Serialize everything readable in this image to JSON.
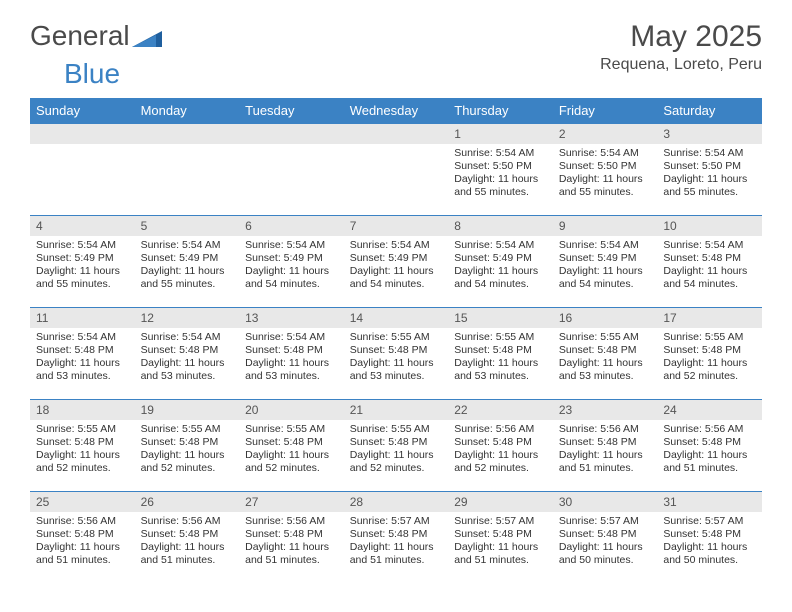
{
  "brand": {
    "part1": "General",
    "part2": "Blue"
  },
  "title": "May 2025",
  "location": "Requena, Loreto, Peru",
  "colors": {
    "header_bg": "#3b82c4",
    "header_text": "#ffffff",
    "daynum_bg": "#e8e8e8",
    "cell_border": "#3b82c4",
    "body_text": "#333333",
    "title_text": "#4a4a4a"
  },
  "weekdays": [
    "Sunday",
    "Monday",
    "Tuesday",
    "Wednesday",
    "Thursday",
    "Friday",
    "Saturday"
  ],
  "weeks": [
    [
      null,
      null,
      null,
      null,
      {
        "d": "1",
        "sr": "5:54 AM",
        "ss": "5:50 PM",
        "dl": "11 hours and 55 minutes."
      },
      {
        "d": "2",
        "sr": "5:54 AM",
        "ss": "5:50 PM",
        "dl": "11 hours and 55 minutes."
      },
      {
        "d": "3",
        "sr": "5:54 AM",
        "ss": "5:50 PM",
        "dl": "11 hours and 55 minutes."
      }
    ],
    [
      {
        "d": "4",
        "sr": "5:54 AM",
        "ss": "5:49 PM",
        "dl": "11 hours and 55 minutes."
      },
      {
        "d": "5",
        "sr": "5:54 AM",
        "ss": "5:49 PM",
        "dl": "11 hours and 55 minutes."
      },
      {
        "d": "6",
        "sr": "5:54 AM",
        "ss": "5:49 PM",
        "dl": "11 hours and 54 minutes."
      },
      {
        "d": "7",
        "sr": "5:54 AM",
        "ss": "5:49 PM",
        "dl": "11 hours and 54 minutes."
      },
      {
        "d": "8",
        "sr": "5:54 AM",
        "ss": "5:49 PM",
        "dl": "11 hours and 54 minutes."
      },
      {
        "d": "9",
        "sr": "5:54 AM",
        "ss": "5:49 PM",
        "dl": "11 hours and 54 minutes."
      },
      {
        "d": "10",
        "sr": "5:54 AM",
        "ss": "5:48 PM",
        "dl": "11 hours and 54 minutes."
      }
    ],
    [
      {
        "d": "11",
        "sr": "5:54 AM",
        "ss": "5:48 PM",
        "dl": "11 hours and 53 minutes."
      },
      {
        "d": "12",
        "sr": "5:54 AM",
        "ss": "5:48 PM",
        "dl": "11 hours and 53 minutes."
      },
      {
        "d": "13",
        "sr": "5:54 AM",
        "ss": "5:48 PM",
        "dl": "11 hours and 53 minutes."
      },
      {
        "d": "14",
        "sr": "5:55 AM",
        "ss": "5:48 PM",
        "dl": "11 hours and 53 minutes."
      },
      {
        "d": "15",
        "sr": "5:55 AM",
        "ss": "5:48 PM",
        "dl": "11 hours and 53 minutes."
      },
      {
        "d": "16",
        "sr": "5:55 AM",
        "ss": "5:48 PM",
        "dl": "11 hours and 53 minutes."
      },
      {
        "d": "17",
        "sr": "5:55 AM",
        "ss": "5:48 PM",
        "dl": "11 hours and 52 minutes."
      }
    ],
    [
      {
        "d": "18",
        "sr": "5:55 AM",
        "ss": "5:48 PM",
        "dl": "11 hours and 52 minutes."
      },
      {
        "d": "19",
        "sr": "5:55 AM",
        "ss": "5:48 PM",
        "dl": "11 hours and 52 minutes."
      },
      {
        "d": "20",
        "sr": "5:55 AM",
        "ss": "5:48 PM",
        "dl": "11 hours and 52 minutes."
      },
      {
        "d": "21",
        "sr": "5:55 AM",
        "ss": "5:48 PM",
        "dl": "11 hours and 52 minutes."
      },
      {
        "d": "22",
        "sr": "5:56 AM",
        "ss": "5:48 PM",
        "dl": "11 hours and 52 minutes."
      },
      {
        "d": "23",
        "sr": "5:56 AM",
        "ss": "5:48 PM",
        "dl": "11 hours and 51 minutes."
      },
      {
        "d": "24",
        "sr": "5:56 AM",
        "ss": "5:48 PM",
        "dl": "11 hours and 51 minutes."
      }
    ],
    [
      {
        "d": "25",
        "sr": "5:56 AM",
        "ss": "5:48 PM",
        "dl": "11 hours and 51 minutes."
      },
      {
        "d": "26",
        "sr": "5:56 AM",
        "ss": "5:48 PM",
        "dl": "11 hours and 51 minutes."
      },
      {
        "d": "27",
        "sr": "5:56 AM",
        "ss": "5:48 PM",
        "dl": "11 hours and 51 minutes."
      },
      {
        "d": "28",
        "sr": "5:57 AM",
        "ss": "5:48 PM",
        "dl": "11 hours and 51 minutes."
      },
      {
        "d": "29",
        "sr": "5:57 AM",
        "ss": "5:48 PM",
        "dl": "11 hours and 51 minutes."
      },
      {
        "d": "30",
        "sr": "5:57 AM",
        "ss": "5:48 PM",
        "dl": "11 hours and 50 minutes."
      },
      {
        "d": "31",
        "sr": "5:57 AM",
        "ss": "5:48 PM",
        "dl": "11 hours and 50 minutes."
      }
    ]
  ],
  "labels": {
    "sunrise": "Sunrise:",
    "sunset": "Sunset:",
    "daylight": "Daylight:"
  }
}
